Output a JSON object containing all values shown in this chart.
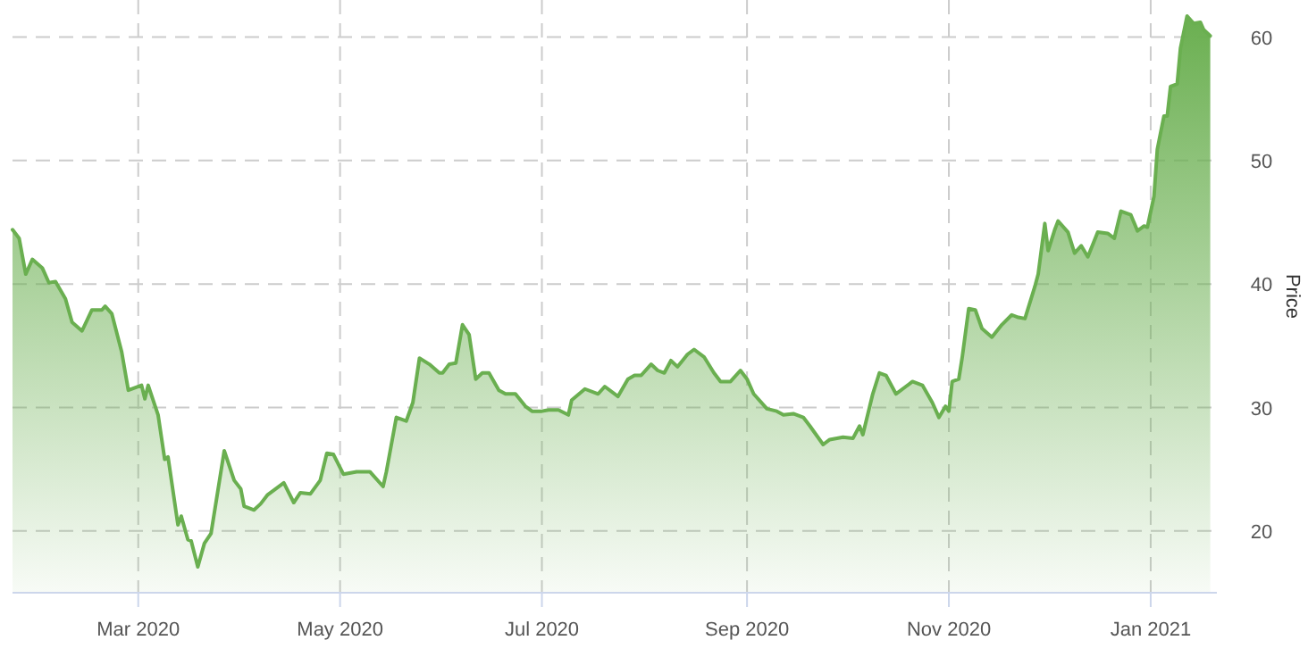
{
  "chart_data": {
    "type": "area",
    "ylabel": "Price",
    "xlim": [
      "2020-01-23",
      "2021-01-21"
    ],
    "ylim": [
      15,
      63
    ],
    "yticks": [
      20,
      30,
      40,
      50,
      60
    ],
    "xticks": [
      {
        "value": "2020-03-01",
        "label": "Mar 2020"
      },
      {
        "value": "2020-05-01",
        "label": "May 2020"
      },
      {
        "value": "2020-07-01",
        "label": "Jul 2020"
      },
      {
        "value": "2020-09-01",
        "label": "Sep 2020"
      },
      {
        "value": "2020-11-01",
        "label": "Nov 2020"
      },
      {
        "value": "2021-01-01",
        "label": "Jan 2021"
      }
    ],
    "grid": true,
    "x": [
      "2020-01-23",
      "2020-01-25",
      "2020-01-27",
      "2020-01-29",
      "2020-02-01",
      "2020-02-03",
      "2020-02-05",
      "2020-02-08",
      "2020-02-10",
      "2020-02-13",
      "2020-02-16",
      "2020-02-19",
      "2020-02-20",
      "2020-02-22",
      "2020-02-25",
      "2020-02-27",
      "2020-03-02",
      "2020-03-03",
      "2020-03-04",
      "2020-03-07",
      "2020-03-09",
      "2020-03-10",
      "2020-03-13",
      "2020-03-14",
      "2020-03-16",
      "2020-03-17",
      "2020-03-19",
      "2020-03-21",
      "2020-03-23",
      "2020-03-27",
      "2020-03-30",
      "2020-04-01",
      "2020-04-02",
      "2020-04-05",
      "2020-04-07",
      "2020-04-09",
      "2020-04-14",
      "2020-04-17",
      "2020-04-19",
      "2020-04-22",
      "2020-04-25",
      "2020-04-27",
      "2020-04-29",
      "2020-05-02",
      "2020-05-06",
      "2020-05-10",
      "2020-05-14",
      "2020-05-15",
      "2020-05-18",
      "2020-05-21",
      "2020-05-23",
      "2020-05-25",
      "2020-05-28",
      "2020-05-31",
      "2020-06-01",
      "2020-06-03",
      "2020-06-05",
      "2020-06-07",
      "2020-06-09",
      "2020-06-11",
      "2020-06-13",
      "2020-06-15",
      "2020-06-18",
      "2020-06-20",
      "2020-06-23",
      "2020-06-26",
      "2020-06-28",
      "2020-07-01",
      "2020-07-03",
      "2020-07-06",
      "2020-07-09",
      "2020-07-10",
      "2020-07-14",
      "2020-07-18",
      "2020-07-20",
      "2020-07-24",
      "2020-07-27",
      "2020-07-29",
      "2020-07-31",
      "2020-08-03",
      "2020-08-05",
      "2020-08-07",
      "2020-08-09",
      "2020-08-11",
      "2020-08-14",
      "2020-08-16",
      "2020-08-19",
      "2020-08-22",
      "2020-08-24",
      "2020-08-27",
      "2020-08-30",
      "2020-09-01",
      "2020-09-03",
      "2020-09-07",
      "2020-09-10",
      "2020-09-12",
      "2020-09-15",
      "2020-09-18",
      "2020-09-20",
      "2020-09-24",
      "2020-09-26",
      "2020-09-30",
      "2020-10-03",
      "2020-10-05",
      "2020-10-06",
      "2020-10-09",
      "2020-10-11",
      "2020-10-13",
      "2020-10-16",
      "2020-10-19",
      "2020-10-21",
      "2020-10-24",
      "2020-10-27",
      "2020-10-29",
      "2020-10-31",
      "2020-11-01",
      "2020-11-02",
      "2020-11-04",
      "2020-11-05",
      "2020-11-07",
      "2020-11-09",
      "2020-11-11",
      "2020-11-14",
      "2020-11-17",
      "2020-11-20",
      "2020-11-22",
      "2020-11-24",
      "2020-11-27",
      "2020-11-28",
      "2020-11-30",
      "2020-12-01",
      "2020-12-03",
      "2020-12-04",
      "2020-12-07",
      "2020-12-09",
      "2020-12-11",
      "2020-12-13",
      "2020-12-16",
      "2020-12-19",
      "2020-12-21",
      "2020-12-23",
      "2020-12-26",
      "2020-12-28",
      "2020-12-30",
      "2020-12-31",
      "2021-01-02",
      "2021-01-03",
      "2021-01-05",
      "2021-01-06",
      "2021-01-07",
      "2021-01-09",
      "2021-01-10",
      "2021-01-12",
      "2021-01-14",
      "2021-01-16",
      "2021-01-17",
      "2021-01-19"
    ],
    "series": [
      {
        "color": "#6aaf50",
        "values": [
          44.4,
          43.7,
          40.8,
          42.0,
          41.3,
          40.1,
          40.2,
          38.8,
          36.9,
          36.2,
          37.9,
          37.9,
          38.2,
          37.6,
          34.5,
          31.4,
          31.8,
          30.7,
          31.8,
          29.4,
          25.8,
          26.0,
          20.5,
          21.2,
          19.3,
          19.2,
          17.1,
          19.0,
          19.8,
          26.5,
          24.1,
          23.4,
          22.0,
          21.7,
          22.2,
          22.9,
          23.9,
          22.3,
          23.1,
          23.0,
          24.1,
          26.3,
          26.2,
          24.6,
          24.8,
          24.8,
          23.6,
          24.8,
          29.2,
          28.9,
          30.4,
          34.0,
          33.5,
          32.8,
          32.8,
          33.5,
          33.6,
          36.7,
          35.9,
          32.3,
          32.8,
          32.8,
          31.4,
          31.1,
          31.1,
          30.1,
          29.7,
          29.7,
          29.8,
          29.8,
          29.4,
          30.6,
          31.5,
          31.1,
          31.7,
          30.9,
          32.3,
          32.6,
          32.6,
          33.5,
          33.0,
          32.8,
          33.8,
          33.3,
          34.3,
          34.7,
          34.1,
          32.8,
          32.1,
          32.1,
          33.0,
          32.3,
          31.1,
          29.9,
          29.7,
          29.4,
          29.5,
          29.2,
          28.5,
          27.0,
          27.4,
          27.6,
          27.5,
          28.5,
          27.8,
          31.1,
          32.8,
          32.6,
          31.1,
          31.7,
          32.1,
          31.8,
          30.4,
          29.2,
          30.1,
          29.7,
          32.1,
          32.3,
          34.0,
          38.0,
          37.9,
          36.4,
          35.7,
          36.7,
          37.5,
          37.3,
          37.2,
          39.8,
          40.8,
          44.9,
          42.7,
          44.4,
          45.1,
          44.2,
          42.5,
          43.1,
          42.2,
          44.2,
          44.1,
          43.7,
          45.9,
          45.6,
          44.3,
          44.7,
          44.6,
          47.1,
          50.9,
          53.6,
          53.6,
          56.0,
          56.2,
          59.1,
          61.7,
          61.1,
          61.2,
          60.6,
          60.1
        ]
      }
    ]
  }
}
